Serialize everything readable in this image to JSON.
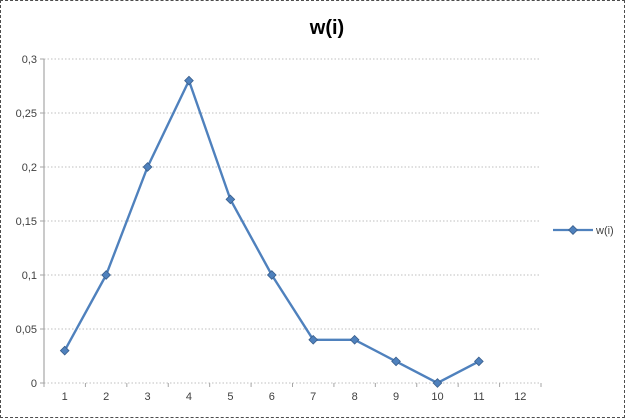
{
  "colors": {
    "series": "#4F81BD",
    "marker_border": "#385D8A",
    "gridline": "#BFBFBF",
    "axis_line": "#A6A6A6",
    "tick_text": "#3F3F3F",
    "title_text": "#000000",
    "background": "#FFFFFF",
    "frame_border": "#4D4D4D"
  },
  "legend": {
    "label": "w(i)"
  },
  "chart_data": {
    "type": "line",
    "title": "w(i)",
    "series": [
      {
        "name": "w(i)",
        "values": [
          0.03,
          0.1,
          0.2,
          0.28,
          0.17,
          0.1,
          0.04,
          0.04,
          0.02,
          0,
          0.02
        ]
      }
    ],
    "x": [
      1,
      2,
      3,
      4,
      5,
      6,
      7,
      8,
      9,
      10,
      11
    ],
    "x_axis_tick_labels": [
      "1",
      "2",
      "3",
      "4",
      "5",
      "6",
      "7",
      "8",
      "9",
      "10",
      "11",
      "12"
    ],
    "y_axis_ticks": {
      "values": [
        0,
        0.05,
        0.1,
        0.15,
        0.2,
        0.25,
        0.3
      ],
      "labels": [
        "0",
        "0,05",
        "0,1",
        "0,15",
        "0,2",
        "0,25",
        "0,3"
      ]
    },
    "ylim": [
      0,
      0.3
    ],
    "xlabel": "",
    "ylabel": "",
    "grid": true,
    "legend_position": "right",
    "marker": "diamond",
    "decimal_separator": ","
  }
}
